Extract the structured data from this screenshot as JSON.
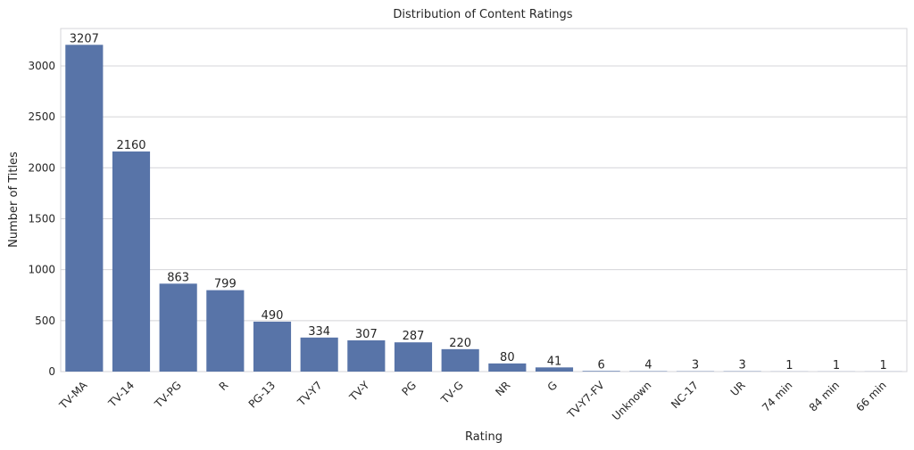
{
  "chart_data": {
    "type": "bar",
    "title": "Distribution of Content Ratings",
    "xlabel": "Rating",
    "ylabel": "Number of Titles",
    "categories": [
      "TV-MA",
      "TV-14",
      "TV-PG",
      "R",
      "PG-13",
      "TV-Y7",
      "TV-Y",
      "PG",
      "TV-G",
      "NR",
      "G",
      "TV-Y7-FV",
      "Unknown",
      "NC-17",
      "UR",
      "74 min",
      "84 min",
      "66 min"
    ],
    "values": [
      3207,
      2160,
      863,
      799,
      490,
      334,
      307,
      287,
      220,
      80,
      41,
      6,
      4,
      3,
      3,
      1,
      1,
      1
    ],
    "ylim": [
      0,
      3367
    ],
    "yticks": [
      0,
      500,
      1000,
      1500,
      2000,
      2500,
      3000
    ],
    "grid": true,
    "bar_color": "#5874a8",
    "data_labels": true
  }
}
